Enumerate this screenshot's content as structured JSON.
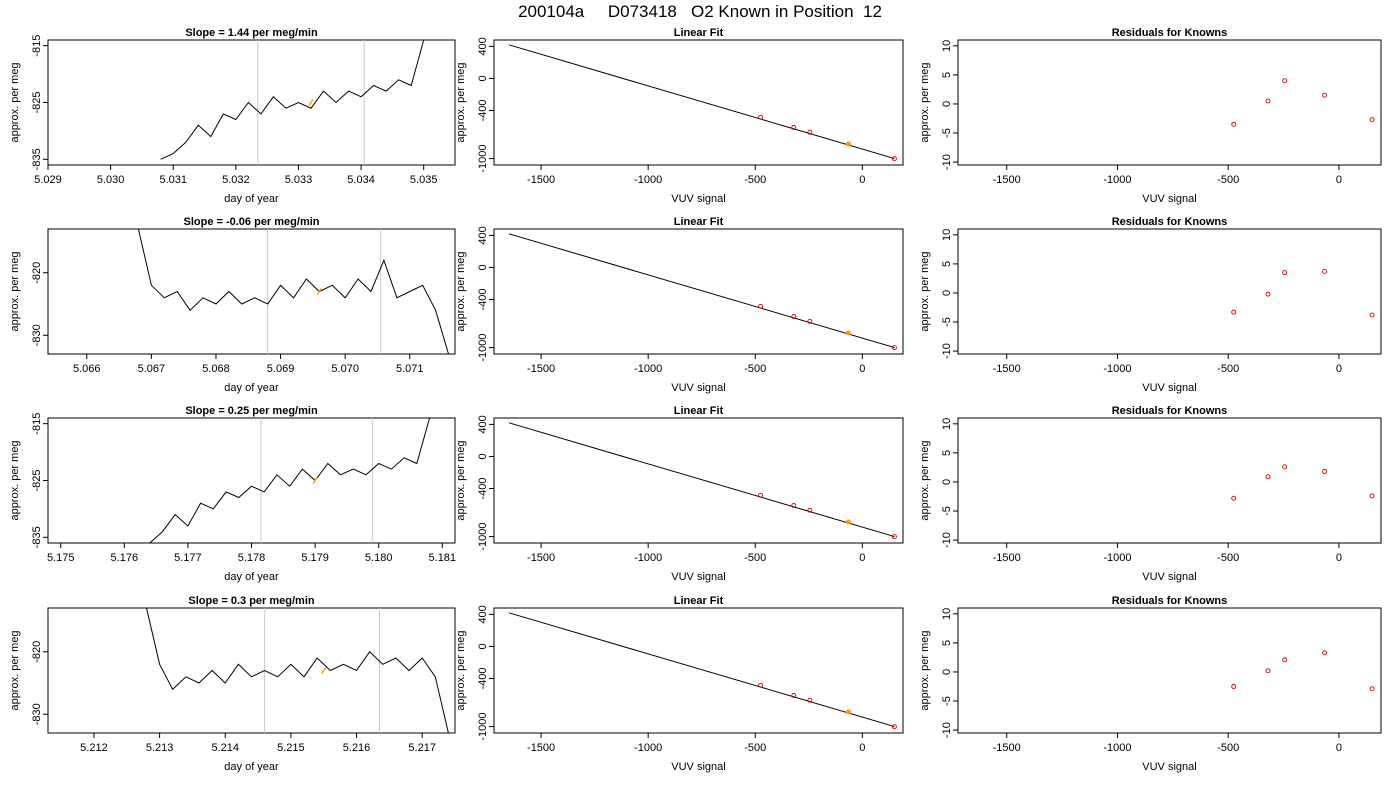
{
  "figure": {
    "title": "200104a     D073418   O2 Known in Position  12"
  },
  "chart_data": [
    {
      "type": "line",
      "title": "Slope =  1.44  per meg/min",
      "xlabel": "day of year",
      "ylabel": "approx. per meg",
      "xlim": [
        5.029,
        5.0355
      ],
      "ylim": [
        -836,
        -814
      ],
      "x_ticks": [
        "5.029",
        "5.030",
        "5.031",
        "5.032",
        "5.033",
        "5.034",
        "5.035"
      ],
      "y_ticks": [
        "-815",
        "-825",
        "-835"
      ],
      "vlines": [
        5.03235,
        5.03405
      ],
      "marker": {
        "x": 5.0332,
        "y": -825,
        "color": "#ff9900"
      },
      "series": [
        {
          "values": [
            [
              5.0308,
              -835
            ],
            [
              5.031,
              -834
            ],
            [
              5.0312,
              -832
            ],
            [
              5.0314,
              -829
            ],
            [
              5.0316,
              -831
            ],
            [
              5.0318,
              -827
            ],
            [
              5.032,
              -828
            ],
            [
              5.0322,
              -825
            ],
            [
              5.0324,
              -827
            ],
            [
              5.0326,
              -824
            ],
            [
              5.0328,
              -826
            ],
            [
              5.033,
              -825
            ],
            [
              5.0332,
              -826
            ],
            [
              5.0334,
              -823
            ],
            [
              5.0336,
              -825
            ],
            [
              5.0338,
              -823
            ],
            [
              5.034,
              -824
            ],
            [
              5.0342,
              -822
            ],
            [
              5.0344,
              -823
            ],
            [
              5.0346,
              -821
            ],
            [
              5.0348,
              -822
            ],
            [
              5.035,
              -814
            ]
          ]
        }
      ]
    },
    {
      "type": "scatter",
      "title": "Linear Fit",
      "xlabel": "VUV signal",
      "ylabel": "approx. per meg",
      "xlim": [
        -1720,
        190
      ],
      "ylim": [
        -1080,
        480
      ],
      "x_ticks": [
        "-1500",
        "-1000",
        "-500",
        "0"
      ],
      "y_ticks": [
        "400",
        "0",
        "-400",
        "-1000"
      ],
      "fit_line": [
        [
          -1650,
          420
        ],
        [
          150,
          -1000
        ]
      ],
      "series": [
        {
          "name": "knowns",
          "values": [
            [
              -475,
              -485
            ],
            [
              -320,
              -612
            ],
            [
              -245,
              -672
            ],
            [
              150,
              -1000
            ]
          ]
        }
      ],
      "highlight": {
        "x": -65,
        "y": -817,
        "color": "#ff9900"
      }
    },
    {
      "type": "scatter",
      "title": "Residuals for Knowns",
      "xlabel": "VUV signal",
      "ylabel": "approx. per meg",
      "xlim": [
        -1720,
        190
      ],
      "ylim": [
        -10.5,
        11
      ],
      "x_ticks": [
        "-1500",
        "-1000",
        "-500",
        "0"
      ],
      "y_ticks": [
        "10",
        "5",
        "0",
        "-5",
        "-10"
      ],
      "series": [
        {
          "name": "residuals",
          "values": [
            [
              -475,
              -3.5
            ],
            [
              -320,
              0.5
            ],
            [
              -245,
              4
            ],
            [
              -65,
              1.5
            ],
            [
              150,
              -2.7
            ]
          ]
        }
      ]
    },
    {
      "type": "line",
      "title": "Slope =  -0.06  per meg/min",
      "xlabel": "day of year",
      "ylabel": "approx. per meg",
      "xlim": [
        5.0654,
        5.0717
      ],
      "ylim": [
        -833,
        -813
      ],
      "x_ticks": [
        "5.066",
        "5.067",
        "5.068",
        "5.069",
        "5.070",
        "5.071"
      ],
      "y_ticks": [
        "-820",
        "-830"
      ],
      "vlines": [
        5.0688,
        5.07055
      ],
      "marker": {
        "x": 5.0696,
        "y": -823,
        "color": "#ff9900"
      },
      "series": [
        {
          "values": [
            [
              5.0668,
              -813
            ],
            [
              5.067,
              -822
            ],
            [
              5.0672,
              -824
            ],
            [
              5.0674,
              -823
            ],
            [
              5.0676,
              -826
            ],
            [
              5.0678,
              -824
            ],
            [
              5.068,
              -825
            ],
            [
              5.0682,
              -823
            ],
            [
              5.0684,
              -825
            ],
            [
              5.0686,
              -824
            ],
            [
              5.0688,
              -825
            ],
            [
              5.069,
              -822
            ],
            [
              5.0692,
              -824
            ],
            [
              5.0694,
              -821
            ],
            [
              5.0696,
              -823
            ],
            [
              5.0698,
              -822
            ],
            [
              5.07,
              -824
            ],
            [
              5.0702,
              -821
            ],
            [
              5.0704,
              -823
            ],
            [
              5.0706,
              -818
            ],
            [
              5.0708,
              -824
            ],
            [
              5.071,
              -823
            ],
            [
              5.0712,
              -822
            ],
            [
              5.0714,
              -826
            ],
            [
              5.0716,
              -833
            ]
          ]
        }
      ]
    },
    {
      "type": "scatter",
      "title": "Linear Fit",
      "xlabel": "VUV signal",
      "ylabel": "approx. per meg",
      "xlim": [
        -1720,
        190
      ],
      "ylim": [
        -1080,
        480
      ],
      "x_ticks": [
        "-1500",
        "-1000",
        "-500",
        "0"
      ],
      "y_ticks": [
        "400",
        "0",
        "-400",
        "-1000"
      ],
      "fit_line": [
        [
          -1650,
          420
        ],
        [
          150,
          -1000
        ]
      ],
      "series": [
        {
          "name": "knowns",
          "values": [
            [
              -475,
              -485
            ],
            [
              -320,
              -612
            ],
            [
              -245,
              -672
            ],
            [
              150,
              -1000
            ]
          ]
        }
      ],
      "highlight": {
        "x": -65,
        "y": -817,
        "color": "#ff9900"
      }
    },
    {
      "type": "scatter",
      "title": "Residuals for Knowns",
      "xlabel": "VUV signal",
      "ylabel": "approx. per meg",
      "xlim": [
        -1720,
        190
      ],
      "ylim": [
        -10.5,
        11
      ],
      "x_ticks": [
        "-1500",
        "-1000",
        "-500",
        "0"
      ],
      "y_ticks": [
        "10",
        "5",
        "0",
        "-5",
        "-10"
      ],
      "series": [
        {
          "name": "residuals",
          "values": [
            [
              -475,
              -3.3
            ],
            [
              -320,
              -0.2
            ],
            [
              -245,
              3.5
            ],
            [
              -65,
              3.7
            ],
            [
              150,
              -3.8
            ]
          ]
        }
      ]
    },
    {
      "type": "line",
      "title": "Slope =  0.25  per meg/min",
      "xlabel": "day of year",
      "ylabel": "approx. per meg",
      "xlim": [
        5.1748,
        5.1812
      ],
      "ylim": [
        -836,
        -814
      ],
      "x_ticks": [
        "5.175",
        "5.176",
        "5.177",
        "5.178",
        "5.179",
        "5.180",
        "5.181"
      ],
      "y_ticks": [
        "-815",
        "-825",
        "-835"
      ],
      "vlines": [
        5.17815,
        5.1799
      ],
      "marker": {
        "x": 5.179,
        "y": -825,
        "color": "#ff9900"
      },
      "series": [
        {
          "values": [
            [
              5.1764,
              -836
            ],
            [
              5.1766,
              -834
            ],
            [
              5.1768,
              -831
            ],
            [
              5.177,
              -833
            ],
            [
              5.1772,
              -829
            ],
            [
              5.1774,
              -830
            ],
            [
              5.1776,
              -827
            ],
            [
              5.1778,
              -828
            ],
            [
              5.178,
              -826
            ],
            [
              5.1782,
              -827
            ],
            [
              5.1784,
              -824
            ],
            [
              5.1786,
              -826
            ],
            [
              5.1788,
              -823
            ],
            [
              5.179,
              -825
            ],
            [
              5.1792,
              -822
            ],
            [
              5.1794,
              -824
            ],
            [
              5.1796,
              -823
            ],
            [
              5.1798,
              -824
            ],
            [
              5.18,
              -822
            ],
            [
              5.1802,
              -823
            ],
            [
              5.1804,
              -821
            ],
            [
              5.1806,
              -822
            ],
            [
              5.1808,
              -814
            ]
          ]
        }
      ]
    },
    {
      "type": "scatter",
      "title": "Linear Fit",
      "xlabel": "VUV signal",
      "ylabel": "approx. per meg",
      "xlim": [
        -1720,
        190
      ],
      "ylim": [
        -1080,
        480
      ],
      "x_ticks": [
        "-1500",
        "-1000",
        "-500",
        "0"
      ],
      "y_ticks": [
        "400",
        "0",
        "-400",
        "-1000"
      ],
      "fit_line": [
        [
          -1650,
          420
        ],
        [
          150,
          -1000
        ]
      ],
      "series": [
        {
          "name": "knowns",
          "values": [
            [
              -475,
              -485
            ],
            [
              -320,
              -612
            ],
            [
              -245,
              -672
            ],
            [
              150,
              -1000
            ]
          ]
        }
      ],
      "highlight": {
        "x": -65,
        "y": -817,
        "color": "#ff9900"
      }
    },
    {
      "type": "scatter",
      "title": "Residuals for Knowns",
      "xlabel": "VUV signal",
      "ylabel": "approx. per meg",
      "xlim": [
        -1720,
        190
      ],
      "ylim": [
        -10.5,
        11
      ],
      "x_ticks": [
        "-1500",
        "-1000",
        "-500",
        "0"
      ],
      "y_ticks": [
        "10",
        "5",
        "0",
        "-5",
        "-10"
      ],
      "series": [
        {
          "name": "residuals",
          "values": [
            [
              -475,
              -2.8
            ],
            [
              -320,
              0.9
            ],
            [
              -245,
              2.6
            ],
            [
              -65,
              1.8
            ],
            [
              150,
              -2.4
            ]
          ]
        }
      ]
    },
    {
      "type": "line",
      "title": "Slope =  0.3  per meg/min",
      "xlabel": "day of year",
      "ylabel": "approx. per meg",
      "xlim": [
        5.2113,
        5.2175
      ],
      "ylim": [
        -833,
        -813
      ],
      "x_ticks": [
        "5.212",
        "5.213",
        "5.214",
        "5.215",
        "5.216",
        "5.217"
      ],
      "y_ticks": [
        "-820",
        "-830"
      ],
      "vlines": [
        5.2146,
        5.21635
      ],
      "marker": {
        "x": 5.2155,
        "y": -823,
        "color": "#ff9900"
      },
      "series": [
        {
          "values": [
            [
              5.2128,
              -813
            ],
            [
              5.213,
              -822
            ],
            [
              5.2132,
              -826
            ],
            [
              5.2134,
              -824
            ],
            [
              5.2136,
              -825
            ],
            [
              5.2138,
              -823
            ],
            [
              5.214,
              -825
            ],
            [
              5.2142,
              -822
            ],
            [
              5.2144,
              -824
            ],
            [
              5.2146,
              -823
            ],
            [
              5.2148,
              -824
            ],
            [
              5.215,
              -822
            ],
            [
              5.2152,
              -824
            ],
            [
              5.2154,
              -821
            ],
            [
              5.2156,
              -823
            ],
            [
              5.2158,
              -822
            ],
            [
              5.216,
              -823
            ],
            [
              5.2162,
              -820
            ],
            [
              5.2164,
              -822
            ],
            [
              5.2166,
              -821
            ],
            [
              5.2168,
              -823
            ],
            [
              5.217,
              -821
            ],
            [
              5.2172,
              -824
            ],
            [
              5.2174,
              -833
            ]
          ]
        }
      ]
    },
    {
      "type": "scatter",
      "title": "Linear Fit",
      "xlabel": "VUV signal",
      "ylabel": "approx. per meg",
      "xlim": [
        -1720,
        190
      ],
      "ylim": [
        -1080,
        480
      ],
      "x_ticks": [
        "-1500",
        "-1000",
        "-500",
        "0"
      ],
      "y_ticks": [
        "400",
        "0",
        "-400",
        "-1000"
      ],
      "fit_line": [
        [
          -1650,
          420
        ],
        [
          150,
          -1000
        ]
      ],
      "series": [
        {
          "name": "knowns",
          "values": [
            [
              -475,
              -485
            ],
            [
              -320,
              -612
            ],
            [
              -245,
              -672
            ],
            [
              150,
              -1000
            ]
          ]
        }
      ],
      "highlight": {
        "x": -65,
        "y": -817,
        "color": "#ff9900"
      }
    },
    {
      "type": "scatter",
      "title": "Residuals for Knowns",
      "xlabel": "VUV signal",
      "ylabel": "approx. per meg",
      "xlim": [
        -1720,
        190
      ],
      "ylim": [
        -10.5,
        11
      ],
      "x_ticks": [
        "-1500",
        "-1000",
        "-500",
        "0"
      ],
      "y_ticks": [
        "10",
        "5",
        "0",
        "-5",
        "-10"
      ],
      "series": [
        {
          "name": "residuals",
          "values": [
            [
              -475,
              -2.5
            ],
            [
              -320,
              0.2
            ],
            [
              -245,
              2.1
            ],
            [
              -65,
              3.3
            ],
            [
              150,
              -2.9
            ]
          ]
        }
      ]
    }
  ],
  "colors": {
    "axis": "#000000",
    "vline": "#c8c8c8",
    "marker": "#ff9900",
    "points": "#cc0000"
  }
}
